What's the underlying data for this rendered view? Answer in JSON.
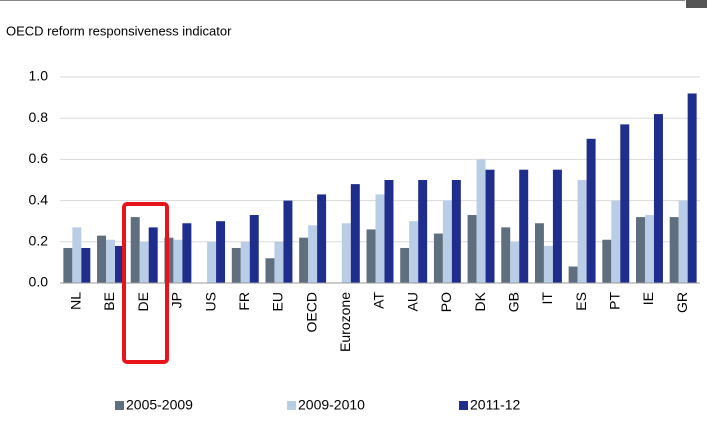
{
  "chart_data": {
    "type": "bar",
    "title": "OECD reform responsiveness indicator",
    "categories": [
      "NL",
      "BE",
      "DE",
      "JP",
      "US",
      "FR",
      "EU",
      "OECD",
      "Eurozone",
      "AT",
      "AU",
      "PO",
      "DK",
      "GB",
      "IT",
      "ES",
      "PT",
      "IE",
      "GR"
    ],
    "series": [
      {
        "name": "2005-2009",
        "color": "#5f6f7f",
        "values": [
          0.17,
          0.23,
          0.32,
          0.22,
          null,
          0.17,
          0.12,
          0.22,
          null,
          0.26,
          0.17,
          0.24,
          0.33,
          0.27,
          0.29,
          0.08,
          0.21,
          0.32,
          0.32
        ]
      },
      {
        "name": "2009-2010",
        "color": "#b9cde6",
        "values": [
          0.27,
          0.21,
          0.2,
          0.21,
          0.2,
          0.2,
          0.2,
          0.28,
          0.29,
          0.43,
          0.3,
          0.4,
          0.6,
          0.2,
          0.18,
          0.5,
          0.4,
          0.33,
          0.4
        ]
      },
      {
        "name": "2011-12",
        "color": "#1f2d8c",
        "values": [
          0.17,
          0.18,
          0.27,
          0.29,
          0.3,
          0.33,
          0.4,
          0.43,
          0.48,
          0.5,
          0.5,
          0.5,
          0.55,
          0.55,
          0.55,
          0.7,
          0.77,
          0.82,
          0.92
        ]
      }
    ],
    "ylim": [
      0,
      1.0
    ],
    "yticks": [
      {
        "value": 0,
        "label": "0.0"
      },
      {
        "value": 0.2,
        "label": "0.2"
      },
      {
        "value": 0.4,
        "label": "0.4"
      },
      {
        "value": 0.6,
        "label": "0.6"
      },
      {
        "value": 0.8,
        "label": "0.8"
      },
      {
        "value": 1.0,
        "label": "1.0"
      }
    ],
    "grid": true
  }
}
